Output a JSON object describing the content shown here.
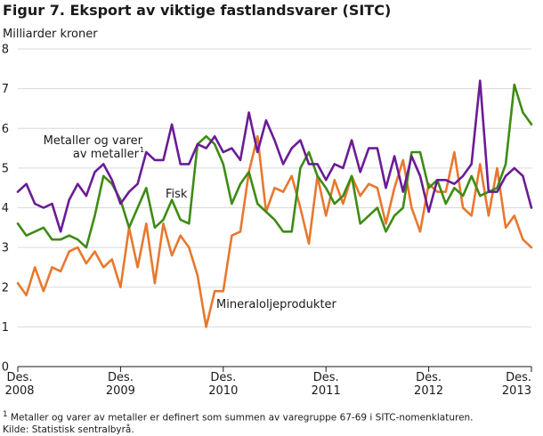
{
  "chart_data": {
    "type": "line",
    "title": "Figur 7. Eksport av viktige fastlandsvarer (SITC)",
    "ylabel": "Milliarder kroner",
    "ylim": [
      0,
      8
    ],
    "yticks": [
      "0",
      "1",
      "2",
      "3",
      "4",
      "5",
      "6",
      "7",
      "8"
    ],
    "grid": true,
    "x_start": "2008-12",
    "x_end": "2013-12",
    "xticks": [
      {
        "month": "Des.",
        "year": "2008"
      },
      {
        "month": "Des.",
        "year": "2009"
      },
      {
        "month": "Des.",
        "year": "2010"
      },
      {
        "month": "Des.",
        "year": "2011"
      },
      {
        "month": "Des.",
        "year": "2012"
      },
      {
        "month": "Des.",
        "year": "2013"
      }
    ],
    "series": [
      {
        "name": "Metaller og varer av metaller",
        "label_lines": [
          "Metaller og varer",
          "av metaller"
        ],
        "label_sup": "1",
        "color": "#6a1c95",
        "values": [
          4.4,
          4.6,
          4.1,
          4.0,
          4.1,
          3.4,
          4.2,
          4.6,
          4.3,
          4.9,
          5.1,
          4.7,
          4.1,
          4.4,
          4.6,
          5.4,
          5.2,
          5.2,
          6.1,
          5.1,
          5.1,
          5.6,
          5.5,
          5.8,
          5.4,
          5.5,
          5.2,
          6.4,
          5.4,
          6.2,
          5.7,
          5.1,
          5.5,
          5.7,
          5.1,
          5.1,
          4.7,
          5.1,
          5.0,
          5.7,
          4.9,
          5.5,
          5.5,
          4.5,
          5.3,
          4.4,
          5.3,
          4.8,
          3.9,
          4.7,
          4.7,
          4.6,
          4.8,
          5.1,
          7.2,
          4.4,
          4.4,
          4.8,
          5.0,
          4.8,
          4.0
        ]
      },
      {
        "name": "Fisk",
        "color": "#3f8b14",
        "values": [
          3.6,
          3.3,
          3.4,
          3.5,
          3.2,
          3.2,
          3.3,
          3.2,
          3.0,
          3.8,
          4.8,
          4.6,
          4.2,
          3.5,
          4.0,
          4.5,
          3.5,
          3.7,
          4.2,
          3.7,
          3.6,
          5.6,
          5.8,
          5.6,
          5.1,
          4.1,
          4.6,
          4.9,
          4.1,
          3.9,
          3.7,
          3.4,
          3.4,
          5.0,
          5.4,
          4.8,
          4.5,
          4.1,
          4.3,
          4.8,
          3.6,
          3.8,
          4.0,
          3.4,
          3.8,
          4.0,
          5.4,
          5.4,
          4.5,
          4.7,
          4.1,
          4.5,
          4.3,
          4.8,
          4.3,
          4.4,
          4.5,
          5.1,
          7.1,
          6.4,
          6.1
        ]
      },
      {
        "name": "Mineraloljeprodukter",
        "color": "#e8782e",
        "values": [
          2.1,
          1.8,
          2.5,
          1.9,
          2.5,
          2.4,
          2.9,
          3.0,
          2.6,
          2.9,
          2.5,
          2.7,
          2.0,
          3.5,
          2.5,
          3.6,
          2.1,
          3.6,
          2.8,
          3.3,
          3.0,
          2.3,
          1.0,
          1.9,
          1.9,
          3.3,
          3.4,
          4.9,
          5.8,
          3.9,
          4.5,
          4.4,
          4.8,
          4.0,
          3.1,
          4.8,
          3.8,
          4.7,
          4.1,
          4.8,
          4.3,
          4.6,
          4.5,
          3.6,
          4.5,
          5.2,
          4.0,
          3.4,
          4.6,
          4.4,
          4.4,
          5.4,
          4.0,
          3.8,
          5.1,
          3.8,
          5.0,
          3.5,
          3.8,
          3.2,
          3.0
        ]
      }
    ],
    "annotations": [
      {
        "series": 0,
        "text": "Metaller og varer av metaller"
      },
      {
        "series": 1,
        "text": "Fisk"
      },
      {
        "series": 2,
        "text": "Mineraloljeprodukter"
      }
    ]
  },
  "footnote": {
    "sup": "1",
    "note": "Metaller og varer av metaller er definert som summen av varegruppe 67-69 i SITC-nomenklaturen.",
    "source": "Kilde: Statistisk sentralbyrå."
  }
}
